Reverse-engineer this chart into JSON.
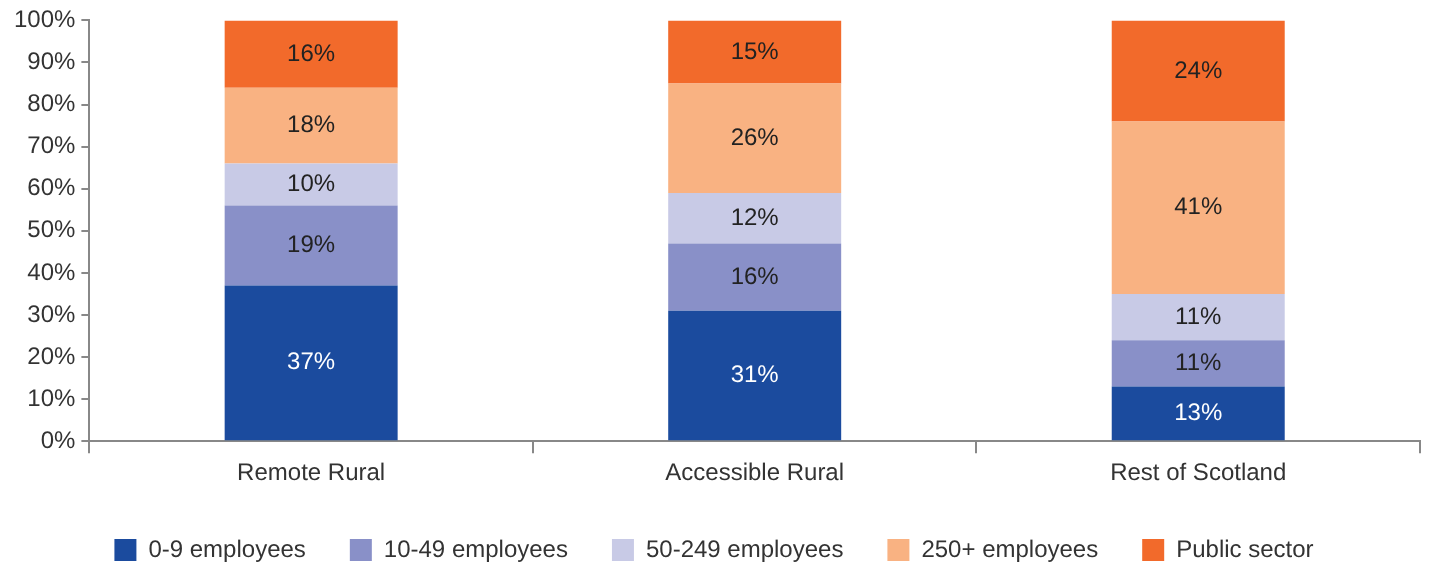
{
  "chart_data": {
    "type": "bar",
    "stacked": true,
    "categories": [
      "Remote Rural",
      "Accessible Rural",
      "Rest of Scotland"
    ],
    "series": [
      {
        "name": "0-9 employees",
        "color": "#1b4b9e",
        "values": [
          37,
          31,
          13
        ],
        "value_labels": [
          "37%",
          "31%",
          "13%"
        ]
      },
      {
        "name": "10-49 employees",
        "color": "#8990c8",
        "values": [
          19,
          16,
          11
        ],
        "value_labels": [
          "19%",
          "16%",
          "11%"
        ]
      },
      {
        "name": "50-249 employees",
        "color": "#c8cae6",
        "values": [
          10,
          12,
          11
        ],
        "value_labels": [
          "10%",
          "12%",
          "11%"
        ]
      },
      {
        "name": "250+ employees",
        "color": "#f9b282",
        "values": [
          18,
          26,
          41
        ],
        "value_labels": [
          "18%",
          "26%",
          "41%"
        ]
      },
      {
        "name": "Public sector",
        "color": "#f26a2b",
        "values": [
          16,
          15,
          24
        ],
        "value_labels": [
          "16%",
          "15%",
          "24%"
        ]
      }
    ],
    "ylim": [
      0,
      100
    ],
    "yticks": [
      {
        "value": 0,
        "label": "0%"
      },
      {
        "value": 10,
        "label": "10%"
      },
      {
        "value": 20,
        "label": "20%"
      },
      {
        "value": 30,
        "label": "30%"
      },
      {
        "value": 40,
        "label": "40%"
      },
      {
        "value": 50,
        "label": "50%"
      },
      {
        "value": 60,
        "label": "60%"
      },
      {
        "value": 70,
        "label": "70%"
      },
      {
        "value": 80,
        "label": "80%"
      },
      {
        "value": 90,
        "label": "90%"
      },
      {
        "value": 100,
        "label": "100%"
      }
    ],
    "grid": false,
    "legend": "bottom"
  }
}
